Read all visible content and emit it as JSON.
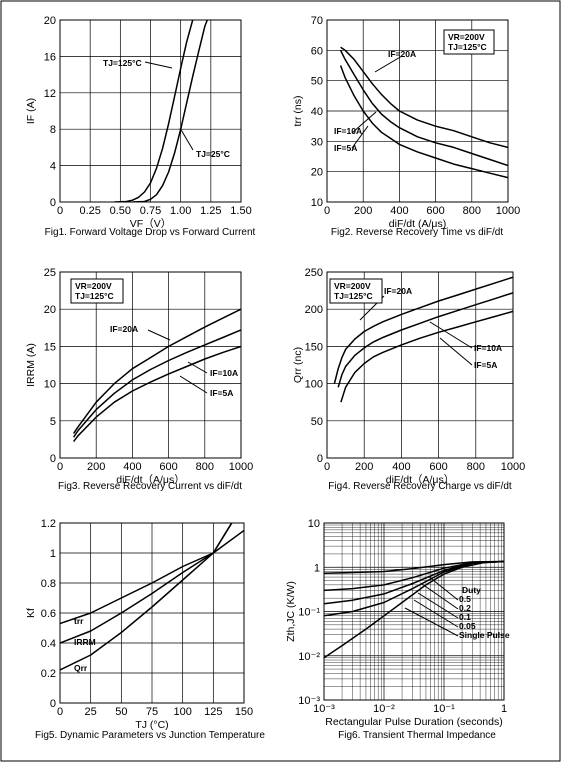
{
  "chart_data": [
    {
      "id": "fig1",
      "type": "line",
      "caption": "Fig1. Forward Voltage Drop vs Forward Current",
      "xlabel": "VF（V）",
      "ylabel": "IF (A)",
      "xlim": [
        0,
        1.5
      ],
      "ylim": [
        0,
        20
      ],
      "xticks": [
        "0",
        "0.25",
        "0.50",
        "0.75",
        "1.00",
        "1.25",
        "1.50"
      ],
      "yticks": [
        "0",
        "4",
        "8",
        "12",
        "16",
        "20"
      ],
      "grid": true,
      "series": [
        {
          "name": "TJ=125°C",
          "x": [
            0.45,
            0.55,
            0.6,
            0.65,
            0.7,
            0.75,
            0.8,
            0.85,
            0.9,
            0.95,
            1.0,
            1.05,
            1.1,
            1.15
          ],
          "y": [
            0,
            0.05,
            0.2,
            0.5,
            1.1,
            2.1,
            3.7,
            5.9,
            8.6,
            11.6,
            14.7,
            17.6,
            20,
            21
          ]
        },
        {
          "name": "TJ=25°C",
          "x": [
            0.6,
            0.7,
            0.75,
            0.8,
            0.85,
            0.9,
            0.95,
            1.0,
            1.05,
            1.1,
            1.15,
            1.2,
            1.25
          ],
          "y": [
            0,
            0.05,
            0.3,
            0.8,
            1.8,
            3.3,
            5.4,
            8.0,
            10.9,
            13.8,
            16.6,
            19.3,
            21
          ]
        }
      ]
    },
    {
      "id": "fig2",
      "type": "line",
      "caption": "Fig2. Reverse Recovery Time vs diF/dt",
      "xlabel": "diF/dt (A/μs)",
      "ylabel": "trr (ns)",
      "xlim": [
        0,
        1000
      ],
      "ylim": [
        10,
        70
      ],
      "xticks": [
        "0",
        "200",
        "400",
        "600",
        "800",
        "1000"
      ],
      "yticks": [
        "10",
        "20",
        "30",
        "40",
        "50",
        "60",
        "70"
      ],
      "grid": true,
      "legend_box": [
        "VR=200V",
        "TJ=125°C"
      ],
      "series": [
        {
          "name": "IF=20A",
          "x": [
            75,
            100,
            150,
            200,
            250,
            300,
            350,
            400,
            500,
            600,
            700,
            800,
            900,
            1000
          ],
          "y": [
            61,
            60,
            57,
            53,
            49,
            45.5,
            42.5,
            40,
            37,
            35,
            33.5,
            31.5,
            29.5,
            28
          ]
        },
        {
          "name": "IF=10A",
          "x": [
            75,
            100,
            150,
            200,
            250,
            300,
            350,
            400,
            500,
            600,
            700,
            800,
            900,
            1000
          ],
          "y": [
            60,
            57,
            52,
            47,
            42.5,
            39,
            36.5,
            34.5,
            31.5,
            29.5,
            28,
            26,
            24,
            22
          ]
        },
        {
          "name": "IF=5A",
          "x": [
            75,
            100,
            150,
            200,
            250,
            300,
            350,
            400,
            500,
            600,
            700,
            800,
            900,
            1000
          ],
          "y": [
            55,
            51,
            45,
            40,
            36,
            33,
            31,
            29,
            26.5,
            24.5,
            22.5,
            21,
            19.5,
            18
          ]
        }
      ]
    },
    {
      "id": "fig3",
      "type": "line",
      "caption": "Fig3. Reverse Recovery Current vs diF/dt",
      "xlabel": "diF/dt（A/μs）",
      "ylabel": "IRRM (A)",
      "xlim": [
        0,
        1000
      ],
      "ylim": [
        0,
        25
      ],
      "xticks": [
        "0",
        "200",
        "400",
        "600",
        "800",
        "1000"
      ],
      "yticks": [
        "0",
        "5",
        "10",
        "15",
        "20",
        "25"
      ],
      "grid": true,
      "legend_box": [
        "VR=200V",
        "TJ=125°C"
      ],
      "series": [
        {
          "name": "IF=20A",
          "x": [
            75,
            100,
            200,
            300,
            400,
            500,
            600,
            700,
            800,
            900,
            1000
          ],
          "y": [
            3.3,
            4.2,
            7.5,
            10,
            12,
            13.5,
            15,
            16.3,
            17.6,
            18.8,
            20
          ]
        },
        {
          "name": "IF=10A",
          "x": [
            75,
            100,
            200,
            300,
            400,
            500,
            600,
            700,
            800,
            900,
            1000
          ],
          "y": [
            2.8,
            3.7,
            6.5,
            8.7,
            10.5,
            11.9,
            13.1,
            14.2,
            15.2,
            16.2,
            17.2
          ]
        },
        {
          "name": "IF=5A",
          "x": [
            75,
            100,
            200,
            300,
            400,
            500,
            600,
            700,
            800,
            900,
            1000
          ],
          "y": [
            2.2,
            3,
            5.5,
            7.5,
            9,
            10.2,
            11.3,
            12.3,
            13.3,
            14.2,
            15
          ]
        }
      ]
    },
    {
      "id": "fig4",
      "type": "line",
      "caption": "Fig4. Reverse Recovery Charge vs diF/dt",
      "xlabel": "diF/dt（A/μs）",
      "ylabel": "Qrr (nc)",
      "xlim": [
        0,
        1000
      ],
      "ylim": [
        0,
        250
      ],
      "xticks": [
        "0",
        "200",
        "400",
        "600",
        "800",
        "1000"
      ],
      "yticks": [
        "0",
        "50",
        "100",
        "150",
        "200",
        "250"
      ],
      "grid": true,
      "legend_box": [
        "VR=200V",
        "TJ=125°C"
      ],
      "series": [
        {
          "name": "IF=20A",
          "x": [
            40,
            60,
            80,
            100,
            150,
            200,
            250,
            300,
            400,
            500,
            600,
            700,
            800,
            900,
            1000
          ],
          "y": [
            100,
            120,
            135,
            146,
            160,
            170,
            177,
            183,
            193,
            202,
            211,
            219,
            227,
            235,
            243
          ]
        },
        {
          "name": "IF=10A",
          "x": [
            60,
            80,
            100,
            150,
            200,
            250,
            300,
            400,
            500,
            600,
            700,
            800,
            900,
            1000
          ],
          "y": [
            95,
            112,
            123,
            138,
            148,
            156,
            162,
            172,
            181,
            190,
            198,
            206,
            214,
            222
          ]
        },
        {
          "name": "IF=5A",
          "x": [
            75,
            100,
            150,
            200,
            250,
            300,
            400,
            500,
            600,
            700,
            800,
            900,
            1000
          ],
          "y": [
            75,
            95,
            115,
            127,
            136,
            142,
            152,
            161,
            169,
            176,
            183,
            190,
            197
          ]
        }
      ]
    },
    {
      "id": "fig5",
      "type": "line",
      "caption": "Fig5. Dynamic Parameters vs Junction Temperature",
      "xlabel": "TJ (°C)",
      "ylabel": "Kf",
      "xlim": [
        0,
        150
      ],
      "ylim": [
        0,
        1.2
      ],
      "xticks": [
        "0",
        "25",
        "50",
        "75",
        "100",
        "125",
        "150"
      ],
      "yticks": [
        "0",
        "0.2",
        "0.4",
        "0.6",
        "0.8",
        "1",
        "1.2"
      ],
      "grid": true,
      "series": [
        {
          "name": "trr",
          "x": [
            0,
            25,
            50,
            75,
            100,
            125,
            150
          ],
          "y": [
            0.53,
            0.6,
            0.7,
            0.8,
            0.91,
            1.0,
            1.15
          ]
        },
        {
          "name": "IRRM",
          "x": [
            0,
            25,
            50,
            75,
            100,
            125,
            140
          ],
          "y": [
            0.4,
            0.48,
            0.6,
            0.73,
            0.87,
            1.0,
            1.2
          ]
        },
        {
          "name": "Qrr",
          "x": [
            0,
            25,
            50,
            75,
            100,
            125,
            140
          ],
          "y": [
            0.22,
            0.32,
            0.47,
            0.64,
            0.82,
            1.0,
            1.2
          ]
        }
      ]
    },
    {
      "id": "fig6",
      "type": "line",
      "caption": "Fig6. Transient Thermal Impedance",
      "xlabel": "Rectangular Pulse Duration (seconds)",
      "ylabel": "Zth,JC (K/W)",
      "xscale": "log",
      "yscale": "log",
      "xlim": [
        0.001,
        1
      ],
      "ylim": [
        0.001,
        10
      ],
      "xticks": [
        "10⁻³",
        "10⁻²",
        "10⁻¹",
        "1"
      ],
      "yticks": [
        "10⁻³",
        "10⁻²",
        "10⁻¹",
        "1",
        "10"
      ],
      "grid": true,
      "legend_title": "Duty",
      "series": [
        {
          "name": "0.5",
          "x": [
            0.001,
            0.003,
            0.01,
            0.03,
            0.1,
            0.3,
            1
          ],
          "y": [
            0.73,
            0.76,
            0.8,
            0.93,
            1.15,
            1.32,
            1.35
          ]
        },
        {
          "name": "0.2",
          "x": [
            0.001,
            0.003,
            0.01,
            0.03,
            0.1,
            0.3,
            1
          ],
          "y": [
            0.3,
            0.33,
            0.4,
            0.58,
            0.95,
            1.28,
            1.35
          ]
        },
        {
          "name": "0.1",
          "x": [
            0.001,
            0.003,
            0.01,
            0.03,
            0.1,
            0.3,
            1
          ],
          "y": [
            0.15,
            0.18,
            0.25,
            0.43,
            0.85,
            1.25,
            1.35
          ]
        },
        {
          "name": "0.05",
          "x": [
            0.001,
            0.003,
            0.01,
            0.03,
            0.1,
            0.3,
            1
          ],
          "y": [
            0.08,
            0.1,
            0.16,
            0.33,
            0.78,
            1.22,
            1.35
          ]
        },
        {
          "name": "Single Pulse",
          "x": [
            0.001,
            0.002,
            0.005,
            0.01,
            0.02,
            0.05,
            0.1,
            0.2,
            0.5,
            1
          ],
          "y": [
            0.009,
            0.017,
            0.04,
            0.08,
            0.16,
            0.4,
            0.7,
            1.0,
            1.3,
            1.35
          ]
        }
      ]
    }
  ],
  "labels": {
    "f1_tj125": "TJ=125°C",
    "f1_tj25": "TJ=25°C",
    "f2_vr": "VR=200V",
    "f2_tj": "TJ=125°C",
    "f2_if20": "IF=20A",
    "f2_if10": "IF=10A",
    "f2_if5": "IF=5A",
    "f3_vr": "VR=200V",
    "f3_tj": "TJ=125°C",
    "f3_if20": "IF=20A",
    "f3_if10": "IF=10A",
    "f3_if5": "IF=5A",
    "f4_vr": "VR=200V",
    "f4_tj": "TJ=125°C",
    "f4_if20": "IF=20A",
    "f4_if10": "IF=10A",
    "f4_if5": "IF=5A",
    "f5_trr": "trr",
    "f5_irrm": "IRRM",
    "f5_qrr": "Qrr",
    "f6_duty": "Duty",
    "f6_d05": "0.5",
    "f6_d02": "0.2",
    "f6_d01": "0.1",
    "f6_d005": "0.05",
    "f6_single": "Single Pulse"
  }
}
